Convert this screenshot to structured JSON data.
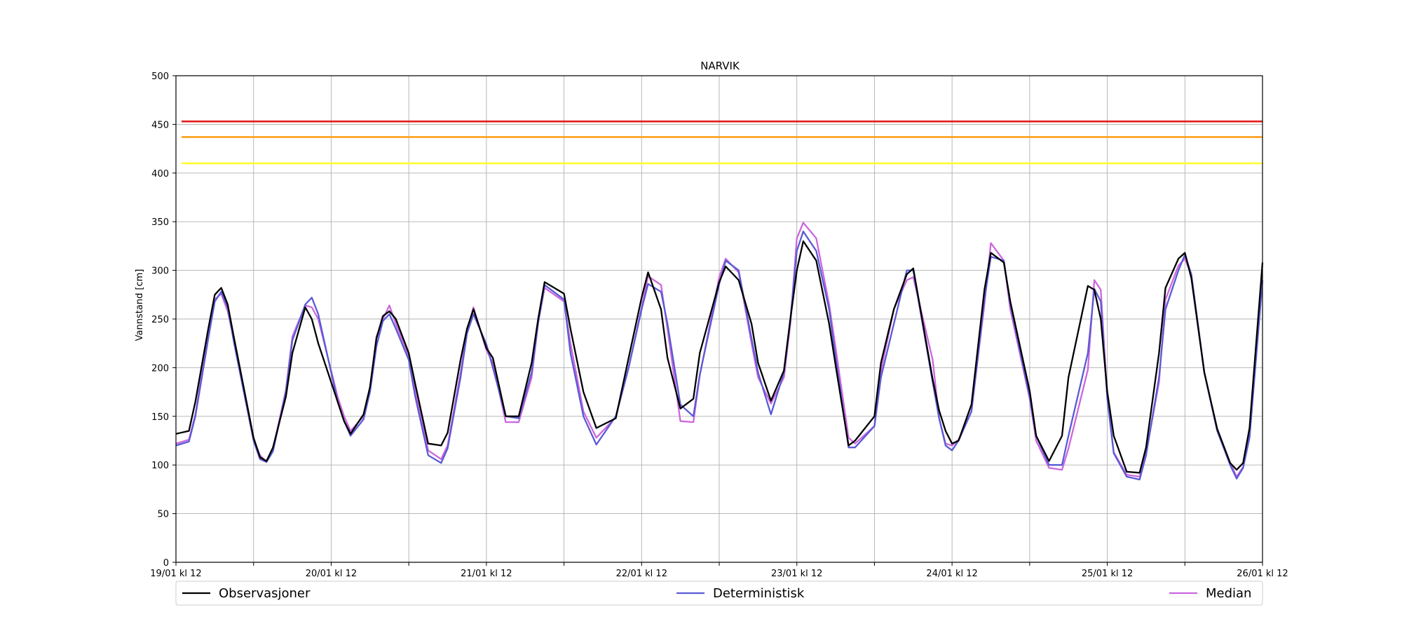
{
  "chart_data": {
    "type": "line",
    "title": "NARVIK",
    "xlabel": "",
    "ylabel": "Vannstand [cm]",
    "ylim": [
      0,
      500
    ],
    "yticks": [
      0,
      50,
      100,
      150,
      200,
      250,
      300,
      350,
      400,
      450,
      500
    ],
    "xlim": [
      0,
      168
    ],
    "x_unit": "hours after 19/01 kl 12",
    "xticks_major": [
      {
        "x": 0,
        "label": "19/01 kl 12"
      },
      {
        "x": 24,
        "label": "20/01 kl 12"
      },
      {
        "x": 48,
        "label": "21/01 kl 12"
      },
      {
        "x": 72,
        "label": "22/01 kl 12"
      },
      {
        "x": 96,
        "label": "23/01 kl 12"
      },
      {
        "x": 120,
        "label": "24/01 kl 12"
      },
      {
        "x": 144,
        "label": "25/01 kl 12"
      },
      {
        "x": 168,
        "label": "26/01 kl 12"
      }
    ],
    "xticks_minor": [
      12,
      36,
      60,
      84,
      108,
      132,
      156
    ],
    "grid": true,
    "legend": "bottom, below axes, 3 columns",
    "thresholds": [
      {
        "value": 453,
        "color": "#e31a1c"
      },
      {
        "value": 437,
        "color": "#ff9f1c"
      },
      {
        "value": 410,
        "color": "#ffff33"
      }
    ],
    "series": [
      {
        "name": "Observasjoner",
        "color": "#000000",
        "x": [
          0,
          2,
          3,
          5,
          6,
          7,
          8,
          9,
          12,
          13,
          14,
          15,
          17,
          18,
          20,
          21,
          22,
          25,
          26,
          27,
          29,
          30,
          31,
          32,
          33,
          34,
          36,
          37,
          39,
          41,
          42,
          44,
          45,
          46,
          48,
          49,
          51,
          53,
          55,
          56,
          57,
          60,
          61,
          63,
          65,
          68,
          70,
          72,
          73,
          75,
          76,
          78,
          80,
          81,
          84,
          85,
          87,
          89,
          90,
          92,
          94,
          95,
          96,
          97,
          99,
          101,
          102,
          104,
          105,
          108,
          109,
          111,
          113,
          114,
          117,
          118,
          119,
          120,
          121,
          123,
          125,
          126,
          128,
          129,
          132,
          133,
          135,
          137,
          138,
          141,
          142,
          143,
          144,
          145,
          147,
          149,
          150,
          152,
          153,
          155,
          156,
          157,
          159,
          161,
          163,
          164,
          165,
          166,
          168
        ],
        "values": [
          132,
          135,
          165,
          240,
          275,
          282,
          265,
          230,
          128,
          108,
          104,
          118,
          170,
          215,
          262,
          250,
          225,
          165,
          145,
          132,
          152,
          180,
          230,
          253,
          258,
          250,
          215,
          183,
          122,
          120,
          133,
          208,
          240,
          260,
          220,
          210,
          150,
          150,
          205,
          250,
          288,
          276,
          240,
          175,
          138,
          148,
          210,
          272,
          298,
          260,
          210,
          158,
          168,
          215,
          288,
          304,
          290,
          245,
          205,
          166,
          197,
          250,
          300,
          330,
          310,
          245,
          202,
          120,
          125,
          150,
          205,
          260,
          296,
          302,
          188,
          156,
          135,
          122,
          125,
          162,
          280,
          318,
          308,
          268,
          176,
          130,
          104,
          130,
          190,
          284,
          280,
          250,
          175,
          130,
          93,
          92,
          118,
          215,
          282,
          312,
          318,
          292,
          195,
          137,
          102,
          95,
          102,
          138,
          308
        ]
      },
      {
        "name": "Deterministisk",
        "color": "#5a5ad6",
        "x": [
          0,
          2,
          3,
          5,
          6,
          7,
          8,
          9,
          12,
          13,
          14,
          15,
          17,
          18,
          20,
          21,
          22,
          25,
          26,
          27,
          29,
          30,
          31,
          32,
          33,
          34,
          36,
          37,
          39,
          41,
          42,
          44,
          45,
          46,
          48,
          49,
          51,
          53,
          55,
          56,
          57,
          60,
          61,
          63,
          65,
          68,
          70,
          72,
          73,
          75,
          76,
          78,
          80,
          81,
          84,
          85,
          87,
          89,
          90,
          92,
          94,
          95,
          96,
          97,
          99,
          101,
          102,
          104,
          105,
          108,
          109,
          111,
          113,
          114,
          117,
          118,
          119,
          120,
          121,
          123,
          125,
          126,
          128,
          129,
          132,
          133,
          135,
          137,
          138,
          141,
          142,
          143,
          144,
          145,
          147,
          149,
          150,
          152,
          153,
          155,
          156,
          157,
          159,
          161,
          163,
          164,
          165,
          166,
          168
        ],
        "values": [
          120,
          124,
          150,
          230,
          268,
          278,
          262,
          225,
          125,
          106,
          103,
          114,
          175,
          228,
          265,
          272,
          255,
          165,
          145,
          130,
          147,
          175,
          222,
          248,
          255,
          240,
          208,
          170,
          110,
          102,
          117,
          190,
          235,
          255,
          224,
          200,
          150,
          148,
          195,
          246,
          285,
          270,
          215,
          150,
          121,
          150,
          200,
          260,
          286,
          278,
          245,
          162,
          150,
          193,
          286,
          310,
          300,
          230,
          195,
          152,
          195,
          250,
          320,
          340,
          320,
          260,
          210,
          118,
          118,
          140,
          190,
          245,
          300,
          300,
          185,
          148,
          120,
          115,
          125,
          155,
          270,
          314,
          310,
          265,
          170,
          130,
          100,
          100,
          130,
          215,
          281,
          268,
          168,
          112,
          88,
          85,
          110,
          190,
          260,
          300,
          316,
          296,
          195,
          135,
          100,
          86,
          97,
          128,
          290
        ]
      },
      {
        "name": "Median",
        "color": "#cc66dd",
        "x": [
          0,
          2,
          3,
          5,
          6,
          7,
          8,
          9,
          12,
          13,
          14,
          15,
          17,
          18,
          20,
          21,
          22,
          25,
          26,
          27,
          29,
          30,
          31,
          32,
          33,
          34,
          36,
          37,
          39,
          41,
          42,
          44,
          45,
          46,
          48,
          49,
          51,
          53,
          55,
          56,
          57,
          60,
          61,
          63,
          65,
          68,
          70,
          72,
          73,
          75,
          76,
          78,
          80,
          81,
          84,
          85,
          87,
          89,
          90,
          92,
          94,
          95,
          96,
          97,
          99,
          101,
          102,
          104,
          105,
          108,
          109,
          111,
          113,
          114,
          117,
          118,
          119,
          120,
          121,
          123,
          125,
          126,
          128,
          129,
          132,
          133,
          135,
          137,
          138,
          141,
          142,
          143,
          144,
          145,
          147,
          149,
          150,
          152,
          153,
          155,
          156,
          157,
          159,
          161,
          163,
          164,
          165,
          166,
          168
        ],
        "values": [
          122,
          126,
          152,
          235,
          270,
          276,
          258,
          228,
          126,
          110,
          103,
          116,
          177,
          232,
          264,
          262,
          250,
          170,
          150,
          135,
          150,
          178,
          232,
          250,
          264,
          245,
          212,
          175,
          115,
          106,
          120,
          195,
          238,
          262,
          218,
          205,
          144,
          144,
          190,
          246,
          282,
          268,
          225,
          155,
          128,
          149,
          200,
          262,
          294,
          285,
          240,
          145,
          144,
          192,
          293,
          312,
          298,
          225,
          190,
          163,
          190,
          245,
          333,
          349,
          333,
          265,
          220,
          128,
          122,
          140,
          197,
          260,
          290,
          293,
          208,
          148,
          122,
          120,
          126,
          155,
          265,
          328,
          310,
          260,
          168,
          125,
          97,
          95,
          117,
          198,
          290,
          280,
          170,
          113,
          90,
          88,
          112,
          185,
          270,
          305,
          312,
          295,
          195,
          135,
          102,
          88,
          98,
          132,
          290
        ]
      }
    ]
  }
}
